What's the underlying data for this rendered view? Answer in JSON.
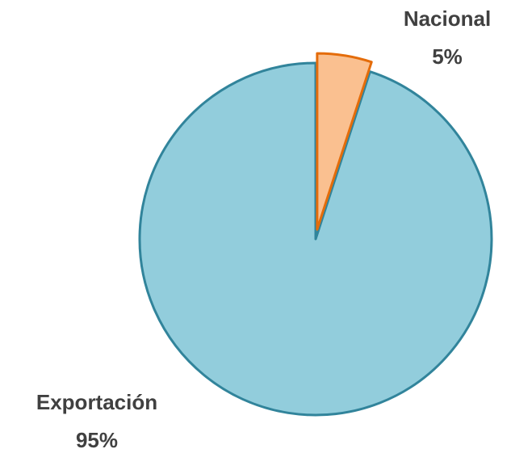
{
  "chart_data": {
    "type": "pie",
    "categories": [
      "Nacional",
      "Exportación"
    ],
    "values": [
      5,
      95
    ],
    "value_labels": [
      "5%",
      "95%"
    ],
    "colors": [
      "#fac090",
      "#92cddc"
    ],
    "edge_colors": [
      "#e46c0a",
      "#31849b"
    ]
  }
}
